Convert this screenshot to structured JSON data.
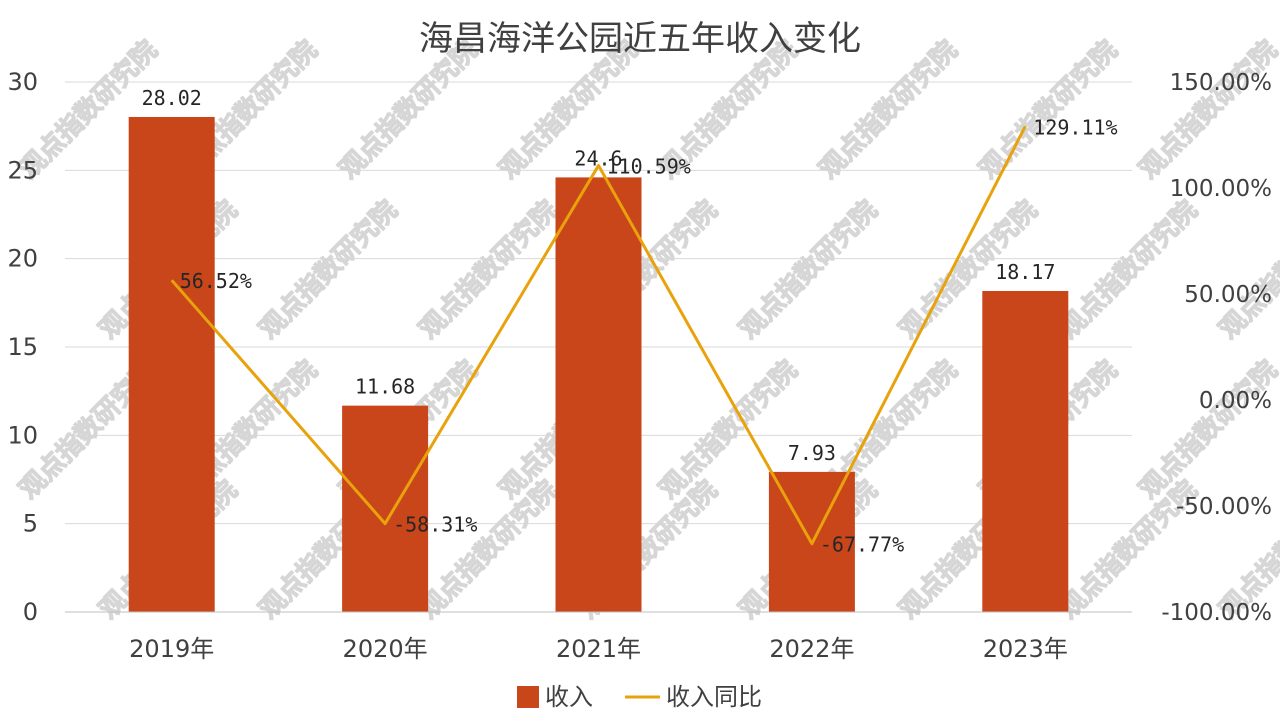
{
  "chart_data": {
    "type": "bar+line",
    "title": "海昌海洋公园近五年收入变化",
    "categories": [
      "2019年",
      "2020年",
      "2021年",
      "2022年",
      "2023年"
    ],
    "series": [
      {
        "name": "收入",
        "kind": "bar",
        "axis": "left",
        "color": "#C9461A",
        "values": [
          28.02,
          11.68,
          24.6,
          7.93,
          18.17
        ],
        "labels": [
          "28.02",
          "11.68",
          "24.6",
          "7.93",
          "18.17"
        ]
      },
      {
        "name": "收入同比",
        "kind": "line",
        "axis": "right",
        "color": "#E8A20C",
        "values": [
          56.52,
          -58.31,
          110.59,
          -67.77,
          129.11
        ],
        "labels": [
          "56.52%",
          "-58.31%",
          "110.59%",
          "-67.77%",
          "129.11%"
        ]
      }
    ],
    "y_left": {
      "range": [
        0,
        30
      ],
      "ticks": [
        0,
        5,
        10,
        15,
        20,
        25,
        30
      ],
      "tick_labels": [
        "0",
        "5",
        "10",
        "15",
        "20",
        "25",
        "30"
      ]
    },
    "y_right": {
      "range": [
        -100,
        150
      ],
      "ticks": [
        -100,
        -50,
        0,
        50,
        100,
        150
      ],
      "tick_labels": [
        "-100.00%",
        "-50.00%",
        "0.00%",
        "50.00%",
        "100.00%",
        "150.00%"
      ]
    },
    "grid": true,
    "legend_position": "bottom",
    "watermark": "观点指数研究院"
  }
}
